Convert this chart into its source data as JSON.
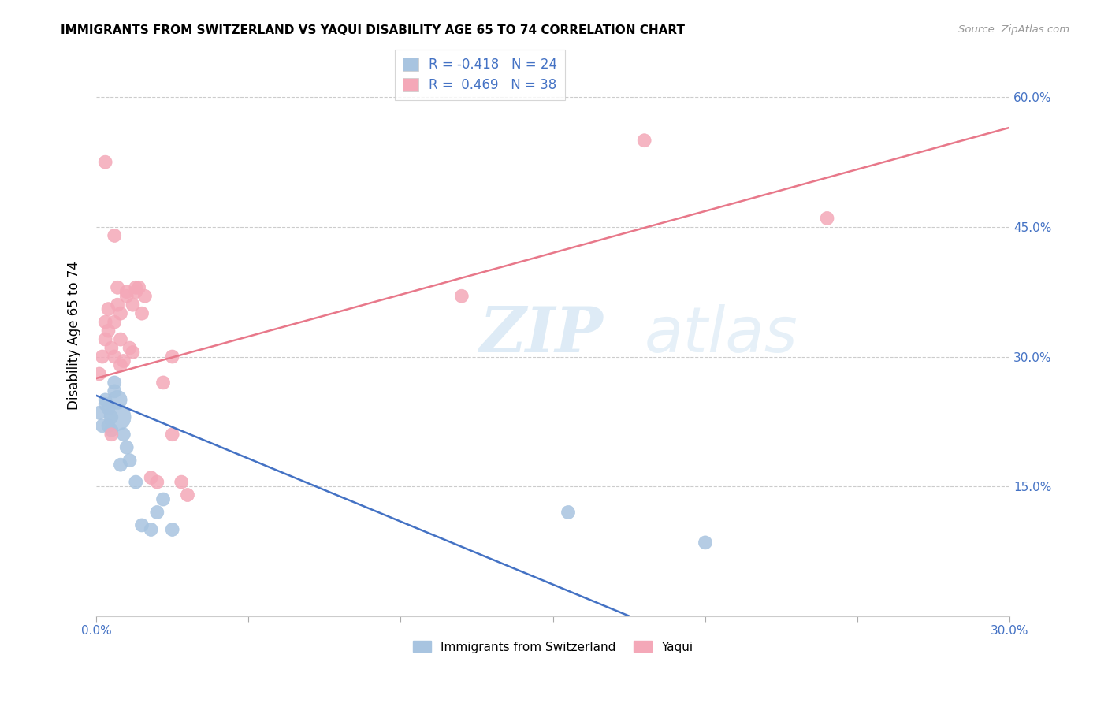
{
  "title": "IMMIGRANTS FROM SWITZERLAND VS YAQUI DISABILITY AGE 65 TO 74 CORRELATION CHART",
  "source": "Source: ZipAtlas.com",
  "ylabel": "Disability Age 65 to 74",
  "x_min": 0.0,
  "x_max": 0.3,
  "y_min": 0.0,
  "y_max": 0.65,
  "x_ticks": [
    0.0,
    0.05,
    0.1,
    0.15,
    0.2,
    0.25,
    0.3
  ],
  "x_tick_labels": [
    "0.0%",
    "",
    "",
    "",
    "",
    "",
    "30.0%"
  ],
  "y_ticks": [
    0.0,
    0.15,
    0.3,
    0.45,
    0.6
  ],
  "y_tick_labels": [
    "",
    "15.0%",
    "30.0%",
    "45.0%",
    "60.0%"
  ],
  "blue_color": "#a8c4e0",
  "pink_color": "#f4a8b8",
  "blue_line_color": "#4472c4",
  "pink_line_color": "#e8788a",
  "blue_scatter_x": [
    0.001,
    0.002,
    0.003,
    0.003,
    0.004,
    0.004,
    0.005,
    0.005,
    0.006,
    0.006,
    0.007,
    0.007,
    0.008,
    0.009,
    0.01,
    0.011,
    0.013,
    0.015,
    0.018,
    0.02,
    0.022,
    0.025,
    0.155,
    0.2
  ],
  "blue_scatter_y": [
    0.235,
    0.22,
    0.245,
    0.25,
    0.22,
    0.24,
    0.23,
    0.215,
    0.26,
    0.27,
    0.25,
    0.23,
    0.175,
    0.21,
    0.195,
    0.18,
    0.155,
    0.105,
    0.1,
    0.12,
    0.135,
    0.1,
    0.12,
    0.085
  ],
  "blue_scatter_sizes": [
    30,
    30,
    30,
    30,
    30,
    30,
    30,
    30,
    30,
    30,
    60,
    120,
    30,
    30,
    30,
    30,
    30,
    30,
    30,
    30,
    30,
    30,
    30,
    30
  ],
  "pink_scatter_x": [
    0.001,
    0.002,
    0.003,
    0.003,
    0.004,
    0.004,
    0.005,
    0.006,
    0.006,
    0.007,
    0.007,
    0.008,
    0.008,
    0.009,
    0.01,
    0.011,
    0.012,
    0.013,
    0.013,
    0.014,
    0.016,
    0.018,
    0.02,
    0.022,
    0.025,
    0.025,
    0.028,
    0.03,
    0.01,
    0.012,
    0.015,
    0.003,
    0.006,
    0.24,
    0.005,
    0.18,
    0.12,
    0.008
  ],
  "pink_scatter_y": [
    0.28,
    0.3,
    0.34,
    0.32,
    0.355,
    0.33,
    0.31,
    0.3,
    0.34,
    0.36,
    0.38,
    0.35,
    0.32,
    0.295,
    0.375,
    0.31,
    0.305,
    0.38,
    0.375,
    0.38,
    0.37,
    0.16,
    0.155,
    0.27,
    0.3,
    0.21,
    0.155,
    0.14,
    0.37,
    0.36,
    0.35,
    0.525,
    0.44,
    0.46,
    0.21,
    0.55,
    0.37,
    0.29
  ],
  "pink_scatter_sizes": [
    30,
    30,
    30,
    30,
    30,
    30,
    30,
    30,
    30,
    30,
    30,
    30,
    30,
    30,
    30,
    30,
    30,
    30,
    30,
    30,
    30,
    30,
    30,
    30,
    30,
    30,
    30,
    30,
    30,
    30,
    30,
    30,
    30,
    30,
    30,
    30,
    30,
    30
  ],
  "blue_trendline_x": [
    0.0,
    0.175
  ],
  "blue_trendline_y": [
    0.255,
    0.0
  ],
  "pink_trendline_x": [
    0.0,
    0.3
  ],
  "pink_trendline_y": [
    0.275,
    0.565
  ],
  "legend_label1": "Immigrants from Switzerland",
  "legend_label2": "Yaqui",
  "right_y_tick_color": "#4472c4",
  "bottom_x_tick_color": "#4472c4",
  "grid_color": "#cccccc",
  "grid_style": "--"
}
